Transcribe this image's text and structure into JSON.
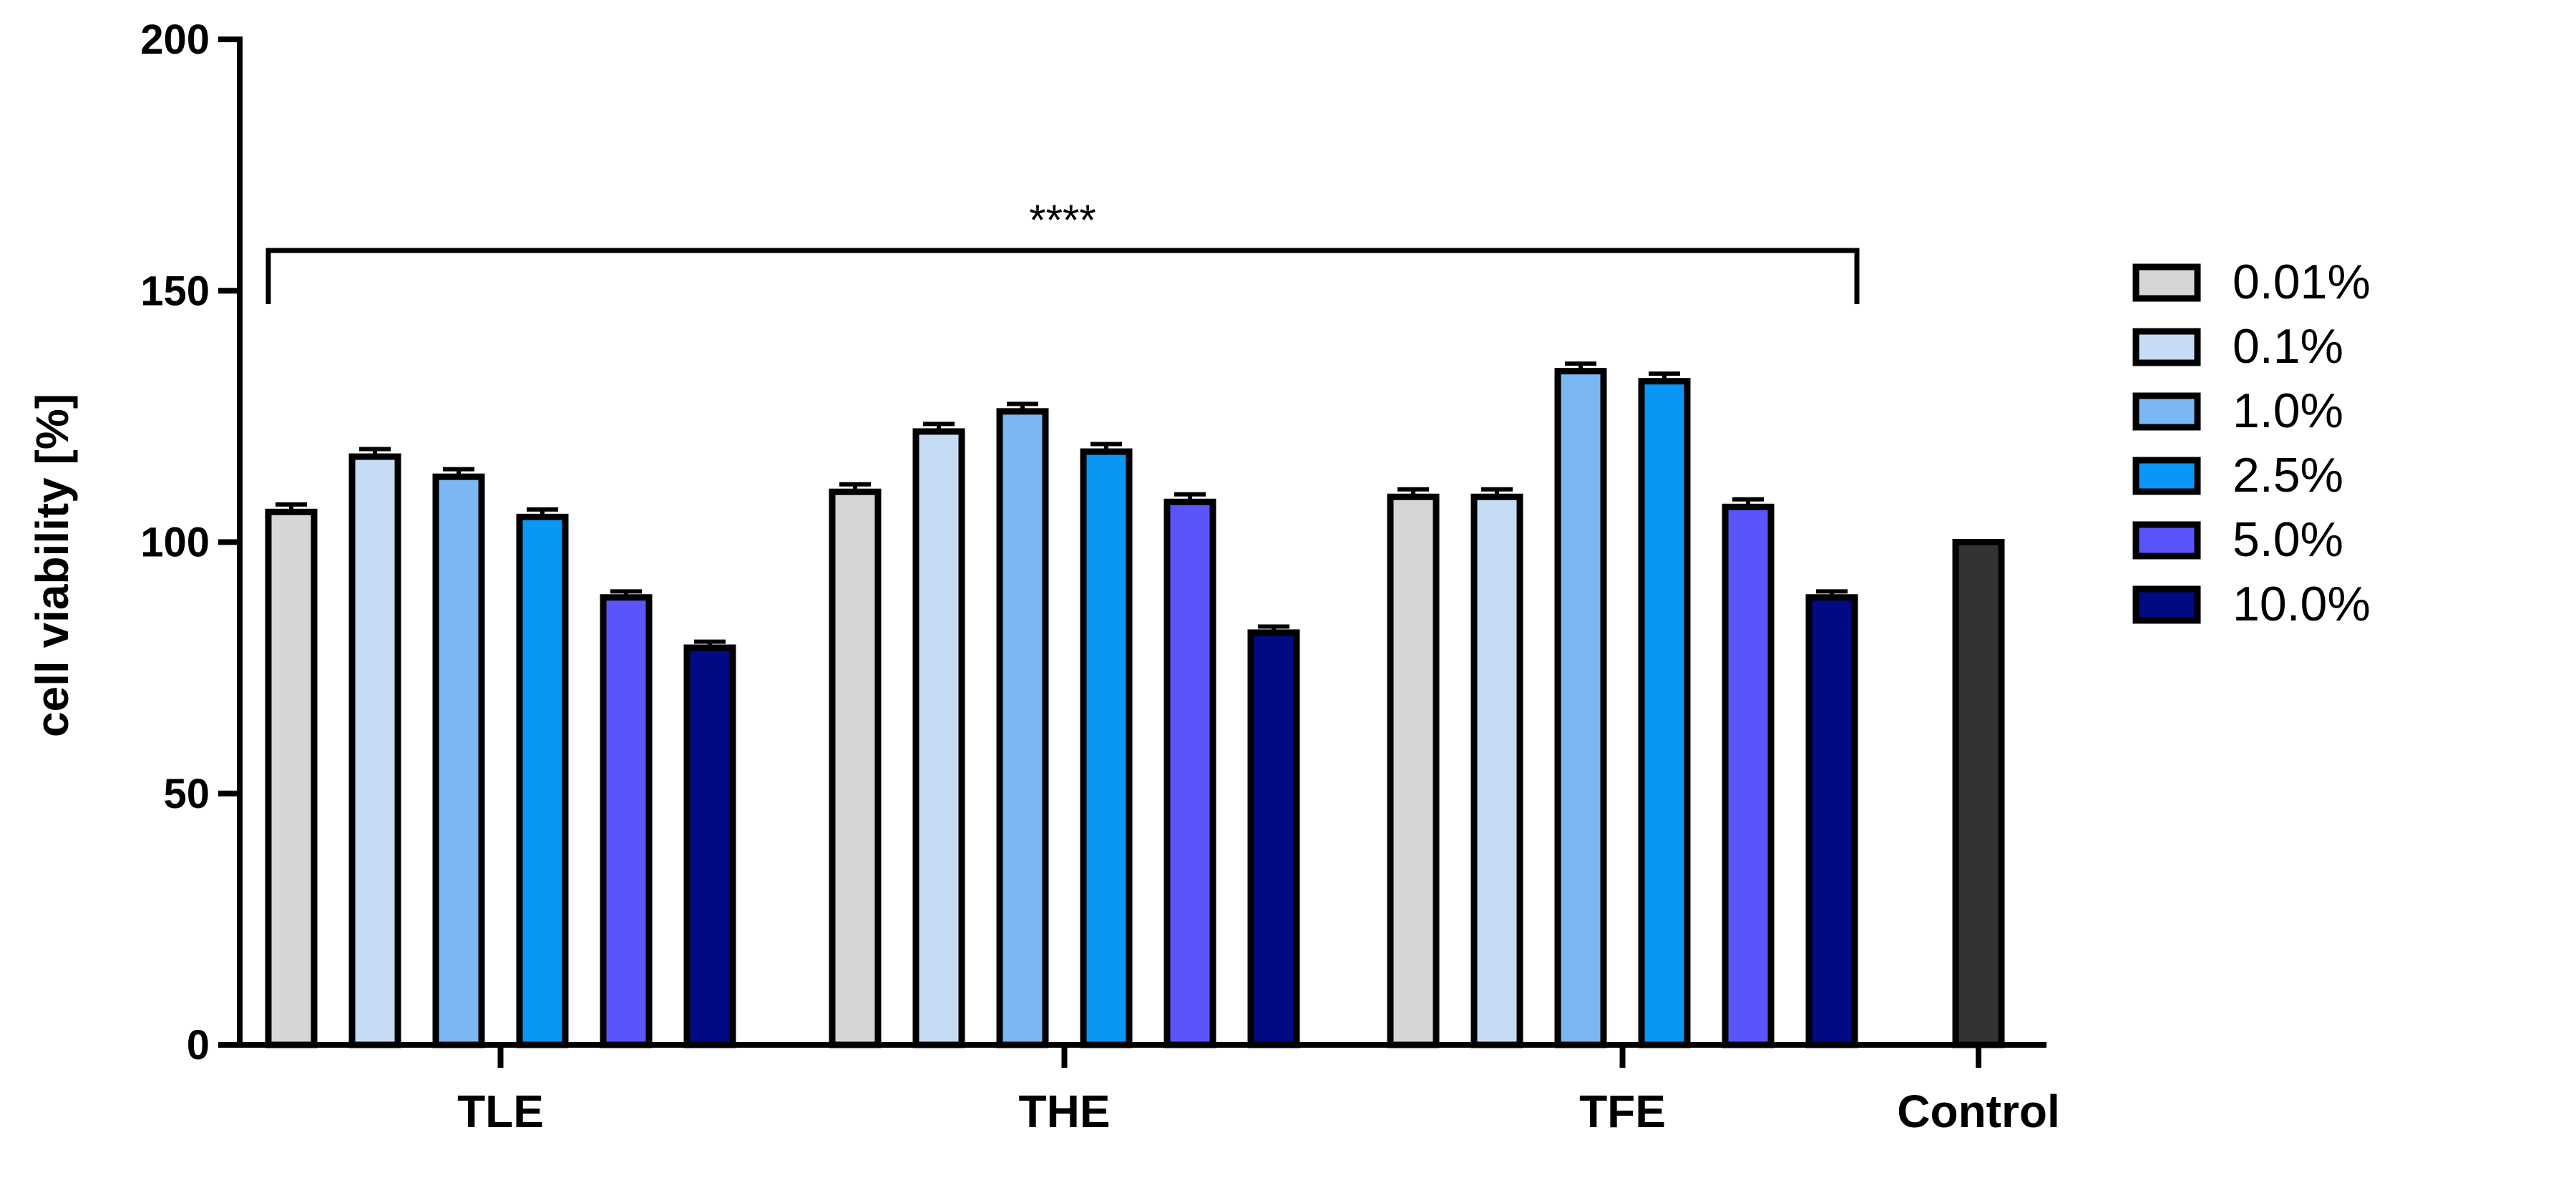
{
  "chart_data": {
    "type": "bar",
    "ylabel": "cell viability [%]",
    "xlabel": "",
    "ylim": [
      0,
      200
    ],
    "yticks": [
      0,
      50,
      100,
      150,
      200
    ],
    "categories": [
      "TLE",
      "THE",
      "TFE",
      "Control"
    ],
    "series": [
      {
        "name": "0.01%",
        "color": "#d6d6d6",
        "values": [
          106,
          110,
          109,
          null
        ],
        "errors": [
          1.5,
          1.5,
          1.5,
          null
        ]
      },
      {
        "name": "0.1%",
        "color": "#c6dcf5",
        "values": [
          117,
          122,
          109,
          null
        ],
        "errors": [
          1.5,
          1.5,
          1.5,
          null
        ]
      },
      {
        "name": "1.0%",
        "color": "#7ab7f3",
        "values": [
          113,
          126,
          134,
          null
        ],
        "errors": [
          1.5,
          1.5,
          1.5,
          null
        ]
      },
      {
        "name": "2.5%",
        "color": "#0a96f5",
        "values": [
          105,
          118,
          132,
          null
        ],
        "errors": [
          1.5,
          1.5,
          1.5,
          null
        ]
      },
      {
        "name": "5.0%",
        "color": "#5a55fa",
        "values": [
          89,
          108,
          107,
          null
        ],
        "errors": [
          1.2,
          1.5,
          1.5,
          null
        ]
      },
      {
        "name": "10.0%",
        "color": "#000a82",
        "values": [
          79,
          82,
          89,
          null
        ],
        "errors": [
          1.2,
          1.2,
          1.2,
          null
        ]
      }
    ],
    "control": {
      "label": "Control",
      "value": 100,
      "color": "#333333"
    },
    "annotation": {
      "text": "****",
      "bracket_from": "TLE",
      "bracket_to": "TFE",
      "y": 158
    },
    "legend_position": "right",
    "grid": false
  }
}
